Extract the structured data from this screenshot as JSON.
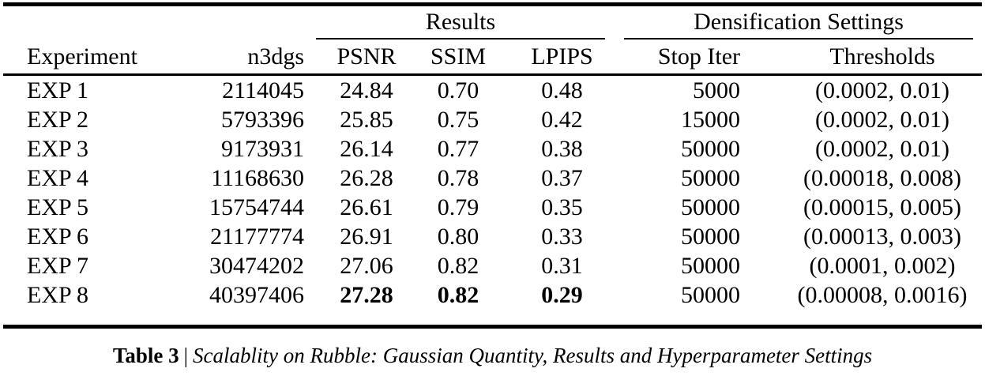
{
  "table": {
    "group_headers": {
      "results": "Results",
      "densification": "Densification Settings"
    },
    "columns": [
      "Experiment",
      "n3dgs",
      "PSNR",
      "SSIM",
      "LPIPS",
      "Stop Iter",
      "Thresholds"
    ],
    "rows": [
      {
        "experiment": "EXP 1",
        "n3dgs": "2114045",
        "psnr": "24.84",
        "ssim": "0.70",
        "lpips": "0.48",
        "stop_iter": "5000",
        "thresholds": "(0.0002, 0.01)"
      },
      {
        "experiment": "EXP 2",
        "n3dgs": "5793396",
        "psnr": "25.85",
        "ssim": "0.75",
        "lpips": "0.42",
        "stop_iter": "15000",
        "thresholds": "(0.0002, 0.01)"
      },
      {
        "experiment": "EXP 3",
        "n3dgs": "9173931",
        "psnr": "26.14",
        "ssim": "0.77",
        "lpips": "0.38",
        "stop_iter": "50000",
        "thresholds": "(0.0002, 0.01)"
      },
      {
        "experiment": "EXP 4",
        "n3dgs": "11168630",
        "psnr": "26.28",
        "ssim": "0.78",
        "lpips": "0.37",
        "stop_iter": "50000",
        "thresholds": "(0.00018, 0.008)"
      },
      {
        "experiment": "EXP 5",
        "n3dgs": "15754744",
        "psnr": "26.61",
        "ssim": "0.79",
        "lpips": "0.35",
        "stop_iter": "50000",
        "thresholds": "(0.00015, 0.005)"
      },
      {
        "experiment": "EXP 6",
        "n3dgs": "21177774",
        "psnr": "26.91",
        "ssim": "0.80",
        "lpips": "0.33",
        "stop_iter": "50000",
        "thresholds": "(0.00013, 0.003)"
      },
      {
        "experiment": "EXP 7",
        "n3dgs": "30474202",
        "psnr": "27.06",
        "ssim": "0.82",
        "lpips": "0.31",
        "stop_iter": "50000",
        "thresholds": "(0.0001, 0.002)"
      },
      {
        "experiment": "EXP 8",
        "n3dgs": "40397406",
        "psnr": "27.28",
        "ssim": "0.82",
        "lpips": "0.29",
        "stop_iter": "50000",
        "thresholds": "(0.00008, 0.0016)"
      }
    ]
  },
  "caption": {
    "label": "Table 3",
    "separator": "|",
    "text": "Scalablity on Rubble: Gaussian Quantity, Results and Hyperparameter Settings"
  },
  "colors": {
    "text": "#000000",
    "background": "#ffffff",
    "rule": "#000000"
  }
}
